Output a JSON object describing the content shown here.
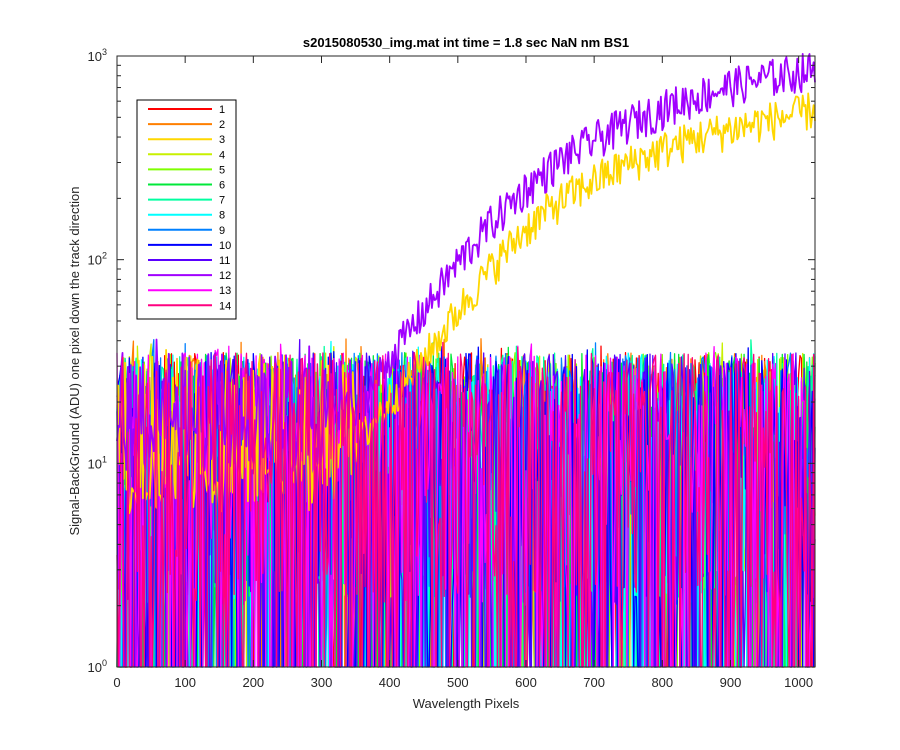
{
  "chart_data": {
    "type": "line",
    "title": "s2015080530_img.mat int time = 1.8 sec  NaN nm BS1",
    "xlabel": "Wavelength Pixels",
    "ylabel": "Signal-BackGround (ADU) one pixel down the track direction",
    "xlim": [
      0,
      1024
    ],
    "ylim": [
      1,
      1000
    ],
    "yscale": "log",
    "grid": false,
    "legend_position": "top-left",
    "x_ticks": [
      0,
      100,
      200,
      300,
      400,
      500,
      600,
      700,
      800,
      900,
      1000
    ],
    "y_ticks": [
      1,
      10,
      100,
      1000
    ],
    "y_tick_labels": [
      {
        "base": "10",
        "exp": "0"
      },
      {
        "base": "10",
        "exp": "1"
      },
      {
        "base": "10",
        "exp": "2"
      },
      {
        "base": "10",
        "exp": "3"
      }
    ],
    "noise_floor": {
      "x": [
        0,
        1024
      ],
      "typical_min": 1,
      "typical_max": 40
    },
    "series": [
      {
        "name": "1",
        "color": "#ff0000",
        "kind": "noise"
      },
      {
        "name": "2",
        "color": "#ff7f00",
        "kind": "noise"
      },
      {
        "name": "3",
        "color": "#ffd700",
        "kind": "signal",
        "x": [
          300,
          350,
          400,
          450,
          500,
          550,
          600,
          650,
          700,
          750,
          800,
          850,
          900,
          950,
          1000,
          1020
        ],
        "y": [
          8,
          12,
          20,
          32,
          55,
          90,
          140,
          190,
          240,
          290,
          340,
          390,
          430,
          470,
          510,
          540
        ]
      },
      {
        "name": "4",
        "color": "#c8f000",
        "kind": "noise"
      },
      {
        "name": "5",
        "color": "#7fff00",
        "kind": "noise"
      },
      {
        "name": "6",
        "color": "#00e83a",
        "kind": "noise"
      },
      {
        "name": "7",
        "color": "#00ffa0",
        "kind": "noise"
      },
      {
        "name": "8",
        "color": "#00ffff",
        "kind": "noise"
      },
      {
        "name": "9",
        "color": "#0080ff",
        "kind": "noise"
      },
      {
        "name": "10",
        "color": "#0000ff",
        "kind": "noise"
      },
      {
        "name": "11",
        "color": "#5a00ff",
        "kind": "noise"
      },
      {
        "name": "12",
        "color": "#a000ff",
        "kind": "signal",
        "x": [
          300,
          350,
          400,
          450,
          500,
          550,
          600,
          650,
          700,
          750,
          800,
          850,
          900,
          950,
          1000,
          1020
        ],
        "y": [
          12,
          18,
          32,
          55,
          95,
          150,
          220,
          300,
          380,
          460,
          540,
          620,
          700,
          760,
          820,
          840
        ]
      },
      {
        "name": "13",
        "color": "#ff00ff",
        "kind": "noise"
      },
      {
        "name": "14",
        "color": "#ff0080",
        "kind": "noise"
      }
    ]
  }
}
